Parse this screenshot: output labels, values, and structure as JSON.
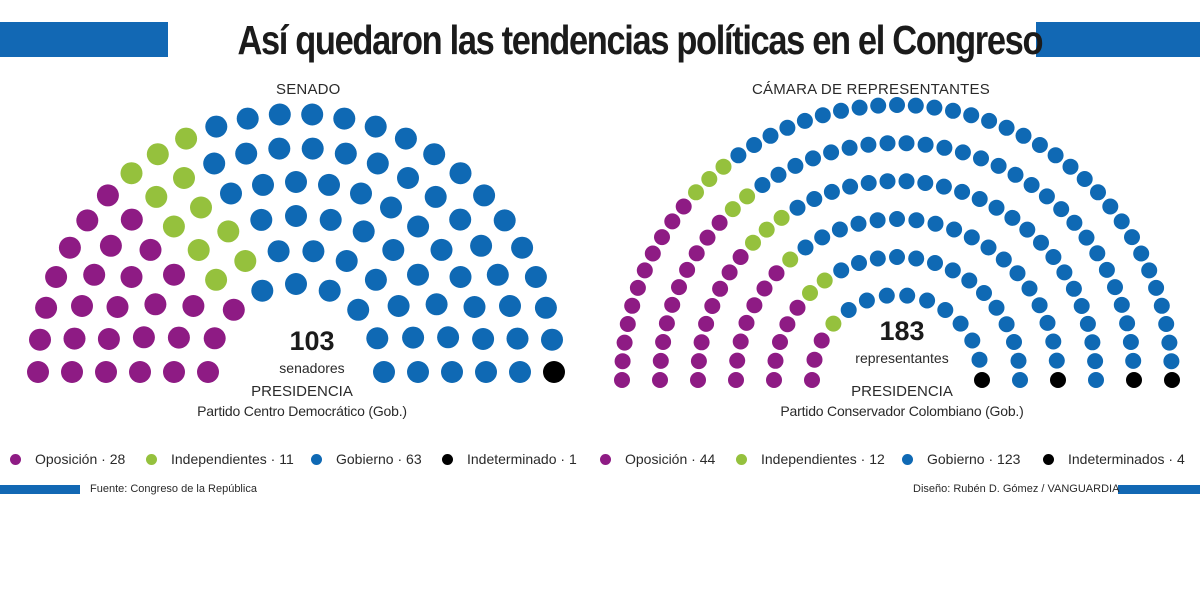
{
  "title": "Así quedaron las tendencias políticas en el Congreso",
  "colors": {
    "brand": "#1268b4",
    "oposicion": "#8e1b84",
    "independientes": "#95c13d",
    "gobierno": "#0f69b4",
    "indeterminado": "#000000"
  },
  "chart_data": [
    {
      "type": "parliament",
      "chamber": "SENADO",
      "total": "103",
      "total_label": "senadores",
      "presidency_label": "PRESIDENCIA",
      "presidency_party": "Partido Centro Democrático (Gob.)",
      "rows": 6,
      "series": [
        {
          "key": "oposicion",
          "name": "Oposición",
          "value": 28,
          "legend": "Oposición · 28"
        },
        {
          "key": "independientes",
          "name": "Independientes",
          "value": 11,
          "legend": "Independientes · 11"
        },
        {
          "key": "gobierno",
          "name": "Gobierno",
          "value": 63,
          "legend": "Gobierno · 63"
        },
        {
          "key": "indeterminado",
          "name": "Indeterminado",
          "value": 1,
          "legend": "Indeterminado · 1"
        }
      ]
    },
    {
      "type": "parliament",
      "chamber": "CÁMARA DE REPRESENTANTES",
      "total": "183",
      "total_label": "representantes",
      "presidency_label": "PRESIDENCIA",
      "presidency_party": "Partido Conservador Colombiano (Gob.)",
      "rows": 6,
      "series": [
        {
          "key": "oposicion",
          "name": "Oposición",
          "value": 44,
          "legend": "Oposición · 44"
        },
        {
          "key": "independientes",
          "name": "Independientes",
          "value": 12,
          "legend": "Independientes · 12"
        },
        {
          "key": "gobierno",
          "name": "Gobierno",
          "value": 123,
          "legend": "Gobierno · 123"
        },
        {
          "key": "indeterminado",
          "name": "Indeterminados",
          "value": 4,
          "legend": "Indeterminados · 4"
        }
      ]
    }
  ],
  "footer": {
    "source": "Fuente: Congreso de la República",
    "design": "Diseño: Rubén D. Gómez / VANGUARDIA"
  }
}
